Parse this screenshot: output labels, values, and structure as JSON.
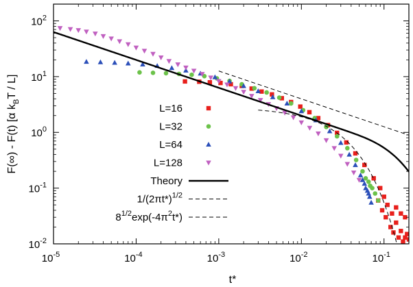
{
  "chart_data": {
    "type": "scatter",
    "title": "",
    "xlabel": "t*",
    "ylabel_parts": [
      "F(∞) - F(t)  [α k",
      "B",
      "T / L]"
    ],
    "xscale": "log",
    "yscale": "log",
    "xlim": [
      1e-05,
      0.2
    ],
    "ylim": [
      0.01,
      200
    ],
    "x_ticks": [
      {
        "value": 1e-05,
        "base": "10",
        "exp": "-5"
      },
      {
        "value": 0.0001,
        "base": "10",
        "exp": "-4"
      },
      {
        "value": 0.001,
        "base": "10",
        "exp": "-3"
      },
      {
        "value": 0.01,
        "base": "10",
        "exp": "-2"
      },
      {
        "value": 0.1,
        "base": "10",
        "exp": "-1"
      }
    ],
    "y_ticks": [
      {
        "value": 0.01,
        "base": "10",
        "exp": "-2"
      },
      {
        "value": 0.1,
        "base": "10",
        "exp": "-1"
      },
      {
        "value": 1,
        "base": "10",
        "exp": "0"
      },
      {
        "value": 10,
        "base": "10",
        "exp": "1"
      },
      {
        "value": 100,
        "base": "10",
        "exp": "2"
      }
    ],
    "series": [
      {
        "name": "L=16",
        "color": "#e8201c",
        "marker": "square",
        "points": [
          [
            0.00039,
            8.2
          ],
          [
            0.00058,
            8.1
          ],
          [
            0.00078,
            7.9
          ],
          [
            0.00105,
            7.7
          ],
          [
            0.0014,
            7.3
          ],
          [
            0.0019,
            6.8
          ],
          [
            0.0025,
            6.1
          ],
          [
            0.0033,
            5.4
          ],
          [
            0.0044,
            4.8
          ],
          [
            0.0058,
            4.1
          ],
          [
            0.0075,
            3.5
          ],
          [
            0.0097,
            2.9
          ],
          [
            0.0125,
            2.3
          ],
          [
            0.016,
            1.8
          ],
          [
            0.021,
            1.35
          ],
          [
            0.027,
            0.98
          ],
          [
            0.035,
            0.66
          ],
          [
            0.045,
            0.42
          ],
          [
            0.058,
            0.26
          ],
          [
            0.075,
            0.15
          ],
          [
            0.09,
            0.1
          ],
          [
            0.1,
            0.07
          ],
          [
            0.11,
            0.05
          ],
          [
            0.125,
            0.035
          ],
          [
            0.14,
            0.024
          ],
          [
            0.16,
            0.017
          ],
          [
            0.18,
            0.013
          ],
          [
            0.2,
            0.012
          ],
          [
            0.095,
            0.04
          ],
          [
            0.105,
            0.03
          ],
          [
            0.12,
            0.02
          ],
          [
            0.13,
            0.016
          ],
          [
            0.15,
            0.013
          ],
          [
            0.17,
            0.011
          ],
          [
            0.085,
            0.06
          ],
          [
            0.14,
            0.045
          ],
          [
            0.16,
            0.035
          ],
          [
            0.18,
            0.03
          ],
          [
            0.19,
            0.015
          ]
        ]
      },
      {
        "name": "L=32",
        "color": "#6cc24a",
        "marker": "circle",
        "points": [
          [
            0.00011,
            11.9
          ],
          [
            0.00016,
            11.7
          ],
          [
            0.00023,
            11.5
          ],
          [
            0.00033,
            11.2
          ],
          [
            0.00047,
            10.8
          ],
          [
            0.00067,
            10.2
          ],
          [
            0.00095,
            9.3
          ],
          [
            0.00135,
            8.4
          ],
          [
            0.0019,
            7.3
          ],
          [
            0.0027,
            6.2
          ],
          [
            0.0038,
            5.2
          ],
          [
            0.0054,
            4.2
          ],
          [
            0.0075,
            3.3
          ],
          [
            0.0105,
            2.5
          ],
          [
            0.0145,
            1.8
          ],
          [
            0.02,
            1.25
          ],
          [
            0.027,
            0.85
          ],
          [
            0.036,
            0.52
          ],
          [
            0.046,
            0.32
          ],
          [
            0.055,
            0.2
          ],
          [
            0.065,
            0.13
          ],
          [
            0.072,
            0.1
          ],
          [
            0.078,
            0.08
          ],
          [
            0.085,
            0.06
          ],
          [
            0.06,
            0.15
          ],
          [
            0.068,
            0.11
          ]
        ]
      },
      {
        "name": "L=64",
        "color": "#2b4fb9",
        "marker": "triangle",
        "points": [
          [
            2.5e-05,
            18.5
          ],
          [
            3.7e-05,
            18.2
          ],
          [
            5.5e-05,
            17.8
          ],
          [
            8e-05,
            17.3
          ],
          [
            0.00012,
            16.6
          ],
          [
            0.00018,
            15.6
          ],
          [
            0.00027,
            14.3
          ],
          [
            0.0004,
            12.9
          ],
          [
            0.0006,
            11.4
          ],
          [
            0.0009,
            9.8
          ],
          [
            0.00135,
            8.2
          ],
          [
            0.002,
            6.8
          ],
          [
            0.003,
            5.5
          ],
          [
            0.0045,
            4.3
          ],
          [
            0.0067,
            3.3
          ],
          [
            0.01,
            2.4
          ],
          [
            0.015,
            1.65
          ],
          [
            0.022,
            1.05
          ],
          [
            0.03,
            0.65
          ],
          [
            0.038,
            0.4
          ],
          [
            0.045,
            0.26
          ],
          [
            0.052,
            0.17
          ],
          [
            0.058,
            0.12
          ],
          [
            0.063,
            0.09
          ],
          [
            0.067,
            0.07
          ],
          [
            0.07,
            0.055
          ],
          [
            0.055,
            0.14
          ],
          [
            0.06,
            0.1
          ],
          [
            0.065,
            0.08
          ]
        ]
      },
      {
        "name": "L=128",
        "color": "#c060c0",
        "marker": "triangle-down",
        "points": [
          [
            1.2e-05,
            74
          ],
          [
            1.6e-05,
            71
          ],
          [
            2e-05,
            68
          ],
          [
            2.5e-05,
            64
          ],
          [
            3.2e-05,
            59
          ],
          [
            4e-05,
            53
          ],
          [
            5e-05,
            48
          ],
          [
            6.3e-05,
            43
          ],
          [
            8e-05,
            38
          ],
          [
            0.0001,
            33
          ],
          [
            0.000126,
            29
          ],
          [
            0.00016,
            25.5
          ],
          [
            0.0002,
            22
          ],
          [
            0.00025,
            19
          ],
          [
            0.00032,
            16.5
          ],
          [
            0.0004,
            14.5
          ],
          [
            0.0005,
            12.7
          ],
          [
            0.00063,
            11.1
          ],
          [
            0.0008,
            9.6
          ],
          [
            0.001,
            8.3
          ],
          [
            0.00126,
            7.2
          ],
          [
            0.0016,
            6.2
          ],
          [
            0.002,
            5.3
          ],
          [
            0.0025,
            4.5
          ],
          [
            0.0032,
            3.8
          ],
          [
            0.004,
            3.2
          ],
          [
            0.005,
            2.7
          ],
          [
            0.0063,
            2.25
          ],
          [
            0.008,
            1.85
          ],
          [
            0.01,
            1.5
          ],
          [
            0.0126,
            1.2
          ],
          [
            0.016,
            0.95
          ],
          [
            0.02,
            0.72
          ],
          [
            0.025,
            0.52
          ],
          [
            0.03,
            0.38
          ],
          [
            0.036,
            0.27
          ],
          [
            0.043,
            0.19
          ],
          [
            0.05,
            0.14
          ]
        ]
      }
    ],
    "curves": [
      {
        "name": "Theory",
        "color": "#000000",
        "style": "solid",
        "width": 2.4
      },
      {
        "name": "1/(2πt*)^1/2",
        "color": "#000000",
        "style": "dashed",
        "width": 1
      },
      {
        "name": "8^1/2exp(-4π^2t*)",
        "color": "#000000",
        "style": "dashed",
        "width": 1
      }
    ],
    "legend": {
      "placement": "center-left",
      "entries": [
        {
          "label": "L=16",
          "kind": "marker",
          "series": 0
        },
        {
          "label": "L=32",
          "kind": "marker",
          "series": 1
        },
        {
          "label": "L=64",
          "kind": "marker",
          "series": 2
        },
        {
          "label": "L=128",
          "kind": "marker",
          "series": 3
        },
        {
          "label": "Theory",
          "kind": "line",
          "curve": 0
        },
        {
          "label_parts": [
            "1/(2πt*)",
            "1/2",
            ""
          ],
          "kind": "line",
          "curve": 1
        },
        {
          "label_parts": [
            "8",
            "1/2",
            "exp(-4π",
            "2",
            "t*)"
          ],
          "kind": "line",
          "curve": 2
        }
      ]
    }
  }
}
